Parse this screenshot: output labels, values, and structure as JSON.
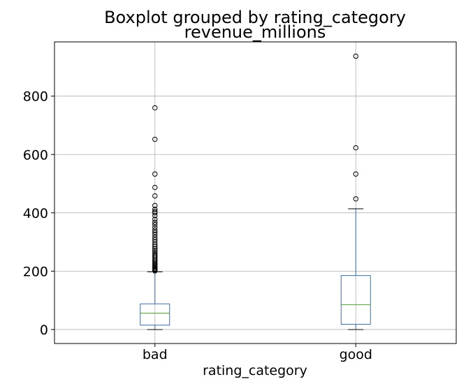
{
  "chart_data": {
    "type": "boxplot",
    "suptitle": "Boxplot grouped by rating_category",
    "title": "revenue_millions",
    "xlabel": "rating_category",
    "ylabel": "",
    "ylim": [
      -48,
      986
    ],
    "yticks": [
      0,
      200,
      400,
      600,
      800
    ],
    "grid": true,
    "categories": [
      "bad",
      "good"
    ],
    "boxes": [
      {
        "name": "bad",
        "whislo": 0,
        "q1": 15,
        "median": 56,
        "q3": 88,
        "whishi": 198,
        "fliers": [
          201,
          204,
          207,
          210,
          214,
          218,
          222,
          226,
          230,
          235,
          240,
          245,
          250,
          255,
          260,
          266,
          272,
          278,
          285,
          292,
          300,
          308,
          316,
          325,
          333,
          341,
          350,
          360,
          368,
          378,
          390,
          400,
          405,
          412,
          425,
          458,
          487,
          533,
          652,
          760
        ]
      },
      {
        "name": "good",
        "whislo": 0,
        "q1": 18,
        "median": 85,
        "q3": 185,
        "whishi": 414,
        "fliers": [
          448,
          533,
          623,
          937
        ]
      }
    ],
    "colors": {
      "box": "#3b6ea5",
      "median": "#4f9a2b",
      "whisker": "#3b6ea5",
      "flier_edge": "#000000",
      "grid": "#b0b0b0",
      "frame": "#000000"
    }
  }
}
